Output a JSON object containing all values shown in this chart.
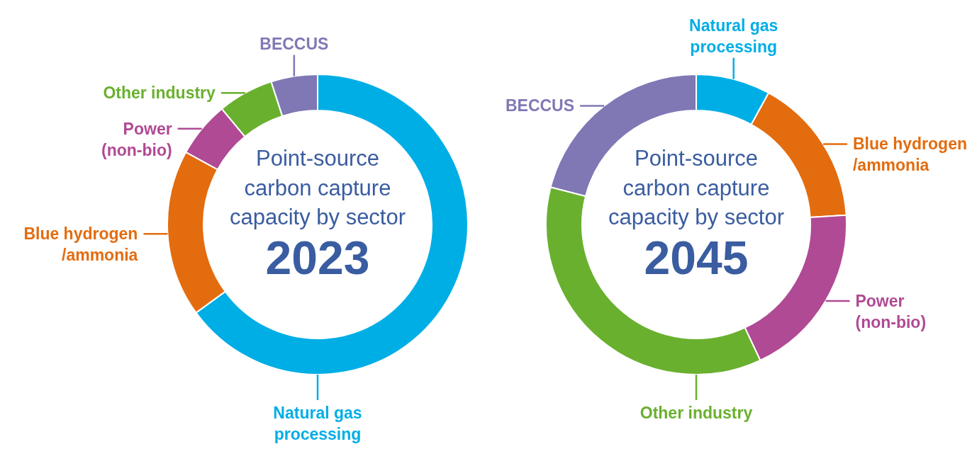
{
  "chart_data": [
    {
      "type": "donut",
      "title": "Point-source carbon capture capacity by sector",
      "subtitle": "2023",
      "categories": [
        "Natural gas processing",
        "Blue hydrogen /ammonia",
        "Power (non-bio)",
        "Other industry",
        "BECCUS"
      ],
      "values": [
        65,
        18,
        6,
        6,
        5
      ],
      "colors": [
        "#00aee6",
        "#e36c0f",
        "#b04a94",
        "#6ab02f",
        "#7f78b5"
      ]
    },
    {
      "type": "donut",
      "title": "Point-source carbon capture capacity by sector",
      "subtitle": "2045",
      "categories": [
        "Natural gas processing",
        "Blue hydrogen /ammonia",
        "Power (non-bio)",
        "Other industry",
        "BECCUS"
      ],
      "values": [
        8,
        16,
        19,
        36,
        21
      ],
      "colors": [
        "#00aee6",
        "#e36c0f",
        "#b04a94",
        "#6ab02f",
        "#7f78b5"
      ]
    }
  ]
}
